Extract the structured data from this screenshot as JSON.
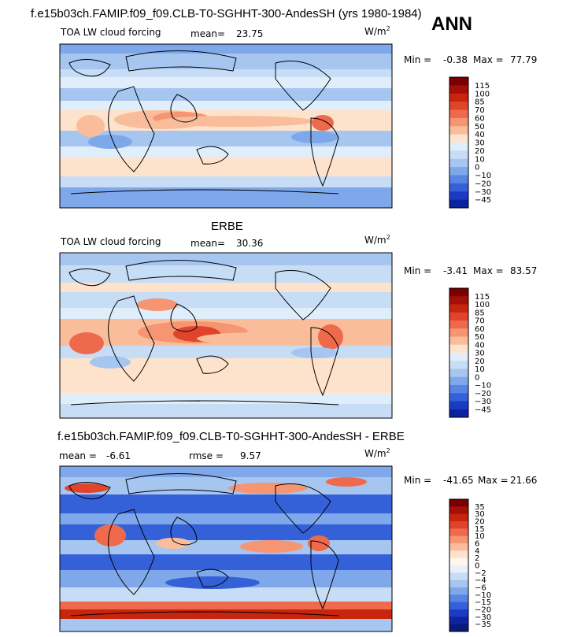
{
  "figure": {
    "header": "f.e15b03ch.FAMIP.f09_f09.CLB-T0-SGHHT-300-AndesSH (yrs 1980-1984)",
    "season": "ANN"
  },
  "chart_data": [
    {
      "type": "heatmap",
      "title": "",
      "field": "TOA LW cloud forcing",
      "stat1_label": "mean=",
      "stat1_value": "23.75",
      "stat2_label": "",
      "stat2_value": "",
      "units": "W/m",
      "units_sup": "2",
      "min_label": "Min =",
      "min_value": "-0.38",
      "max_label": "Max =",
      "max_value": "77.79",
      "levels": [
        "115",
        "100",
        "85",
        "70",
        "60",
        "50",
        "40",
        "30",
        "20",
        "10",
        "0",
        "−10",
        "−20",
        "−30",
        "−45"
      ],
      "colors": [
        "#7a0000",
        "#a50f0a",
        "#c8250f",
        "#e0442a",
        "#ef6a4c",
        "#f59572",
        "#f9bd9b",
        "#fde3cc",
        "#dfeefa",
        "#c6ddf5",
        "#a6c6f0",
        "#7fa8ea",
        "#5884e3",
        "#3461d8",
        "#1a3cc4",
        "#0a229e"
      ]
    },
    {
      "type": "heatmap",
      "title": "ERBE",
      "field": "TOA LW cloud forcing",
      "stat1_label": "mean=",
      "stat1_value": "30.36",
      "stat2_label": "",
      "stat2_value": "",
      "units": "W/m",
      "units_sup": "2",
      "min_label": "Min =",
      "min_value": "-3.41",
      "max_label": "Max =",
      "max_value": "83.57",
      "levels": [
        "115",
        "100",
        "85",
        "70",
        "60",
        "50",
        "40",
        "30",
        "20",
        "10",
        "0",
        "−10",
        "−20",
        "−30",
        "−45"
      ],
      "colors": [
        "#7a0000",
        "#a50f0a",
        "#c8250f",
        "#e0442a",
        "#ef6a4c",
        "#f59572",
        "#f9bd9b",
        "#fde3cc",
        "#dfeefa",
        "#c6ddf5",
        "#a6c6f0",
        "#7fa8ea",
        "#5884e3",
        "#3461d8",
        "#1a3cc4",
        "#0a229e"
      ]
    },
    {
      "type": "heatmap",
      "title": "f.e15b03ch.FAMIP.f09_f09.CLB-T0-SGHHT-300-AndesSH - ERBE",
      "field": "",
      "stat1_label": "mean =",
      "stat1_value": "-6.61",
      "stat2_label": "rmse =",
      "stat2_value": "9.57",
      "units": "W/m",
      "units_sup": "2",
      "min_label": "Min =",
      "min_value": "-41.65",
      "max_label": "Max =",
      "max_value": "21.66",
      "levels": [
        "35",
        "30",
        "20",
        "15",
        "10",
        "6",
        "4",
        "2",
        "0",
        "−2",
        "−4",
        "−6",
        "−10",
        "−15",
        "−20",
        "−30",
        "−35"
      ],
      "colors": [
        "#7a0000",
        "#a50f0a",
        "#c8250f",
        "#e0442a",
        "#ef6a4c",
        "#f59572",
        "#f9bd9b",
        "#fde3cc",
        "#fff6ee",
        "#e8f1fb",
        "#c6ddf5",
        "#a6c6f0",
        "#7fa8ea",
        "#5884e3",
        "#3461d8",
        "#1a3cc4",
        "#10249e",
        "#081a7a"
      ]
    }
  ]
}
